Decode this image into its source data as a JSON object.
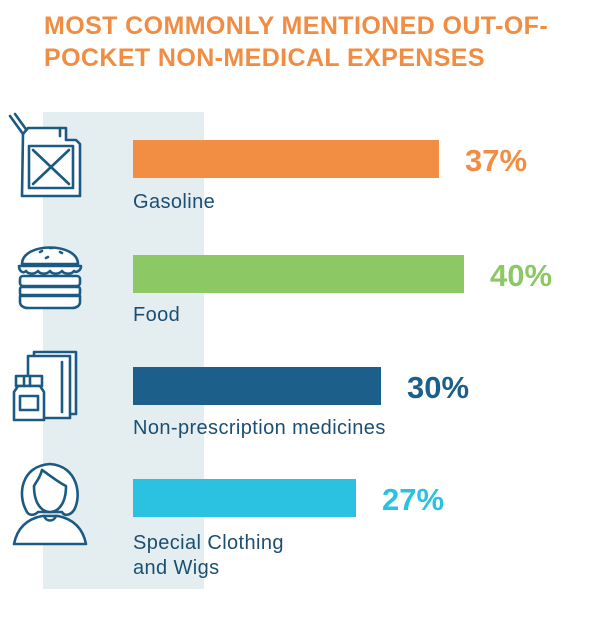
{
  "chart_data": {
    "type": "bar",
    "orientation": "horizontal",
    "title": "MOST COMMONLY MENTIONED OUT-OF-POCKET NON-MEDICAL EXPENSES",
    "value_unit": "%",
    "xlim": [
      0,
      100
    ],
    "grid": false,
    "legend": "none",
    "categories": [
      [
        "Gasoline"
      ],
      [
        "Food"
      ],
      [
        "Non-prescription medicines"
      ],
      [
        "Special Clothing",
        "and Wigs"
      ]
    ],
    "values": [
      37,
      40,
      30,
      27
    ],
    "value_labels": [
      "37%",
      "40%",
      "30%",
      "27%"
    ],
    "colors": [
      "#f28e43",
      "#8cc864",
      "#1c5f8a",
      "#2bc1e0"
    ],
    "icons": [
      "gas-can-icon",
      "burger-icon",
      "medicine-icon",
      "woman-icon"
    ]
  },
  "colors": {
    "title": "#f08d43",
    "label_text": "#1b4f72",
    "icon_stroke": "#1b5a83",
    "icon_band": "#e4eef1"
  }
}
